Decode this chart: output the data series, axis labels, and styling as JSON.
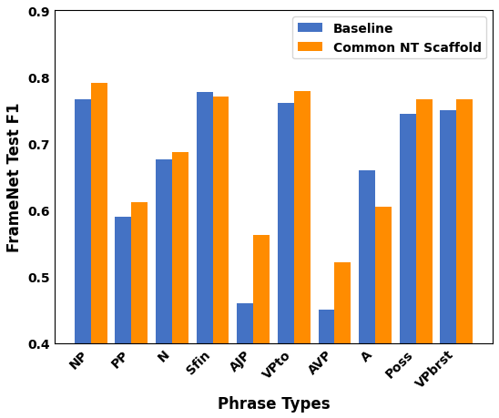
{
  "categories": [
    "NP",
    "PP",
    "N",
    "Sfin",
    "AJP",
    "VPto",
    "AVP",
    "A",
    "Poss",
    "VPbrst"
  ],
  "baseline": [
    0.767,
    0.59,
    0.676,
    0.778,
    0.46,
    0.761,
    0.45,
    0.66,
    0.744,
    0.75
  ],
  "scaffold": [
    0.791,
    0.611,
    0.687,
    0.771,
    0.562,
    0.779,
    0.521,
    0.605,
    0.766,
    0.766
  ],
  "baseline_color": "#4472C4",
  "scaffold_color": "#FF8C00",
  "ylabel": "FrameNet Test F1",
  "xlabel": "Phrase Types",
  "ylim": [
    0.4,
    0.9
  ],
  "yticks": [
    0.4,
    0.5,
    0.6,
    0.7,
    0.8,
    0.9
  ],
  "legend_labels": [
    "Baseline",
    "Common NT Scaffold"
  ],
  "bar_width": 0.4,
  "label_fontsize": 12,
  "tick_fontsize": 10,
  "legend_fontsize": 10
}
